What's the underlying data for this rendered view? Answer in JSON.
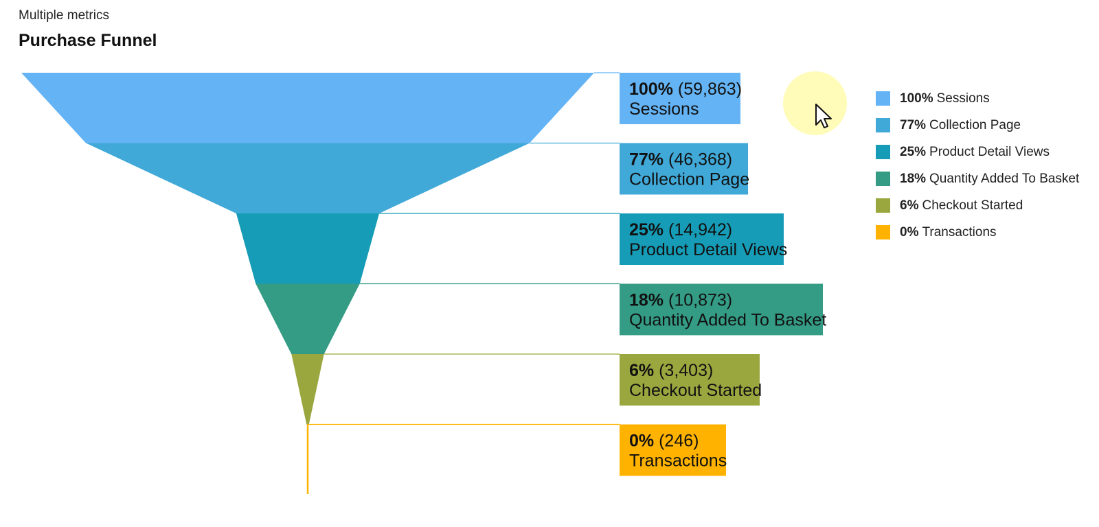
{
  "header": {
    "subtitle": "Multiple metrics",
    "title": "Purchase Funnel"
  },
  "chart_data": {
    "type": "funnel",
    "title": "Purchase Funnel",
    "subtitle": "Multiple metrics",
    "legend_position": "right",
    "steps": [
      {
        "name": "Sessions",
        "percent_label": "100%",
        "value": 59863,
        "value_label": "(59,863)",
        "color": "#64b3f4"
      },
      {
        "name": "Collection Page",
        "percent_label": "77%",
        "value": 46368,
        "value_label": "(46,368)",
        "color": "#40a9d8"
      },
      {
        "name": "Product Detail Views",
        "percent_label": "25%",
        "value": 14942,
        "value_label": "(14,942)",
        "color": "#169cb6"
      },
      {
        "name": "Quantity Added To Basket",
        "percent_label": "18%",
        "value": 10873,
        "value_label": "(10,873)",
        "color": "#349b85"
      },
      {
        "name": "Checkout Started",
        "percent_label": "6%",
        "value": 3403,
        "value_label": "(3,403)",
        "color": "#9aa73f"
      },
      {
        "name": "Transactions",
        "percent_label": "0%",
        "value": 246,
        "value_label": "(246)",
        "color": "#ffb300"
      }
    ]
  }
}
